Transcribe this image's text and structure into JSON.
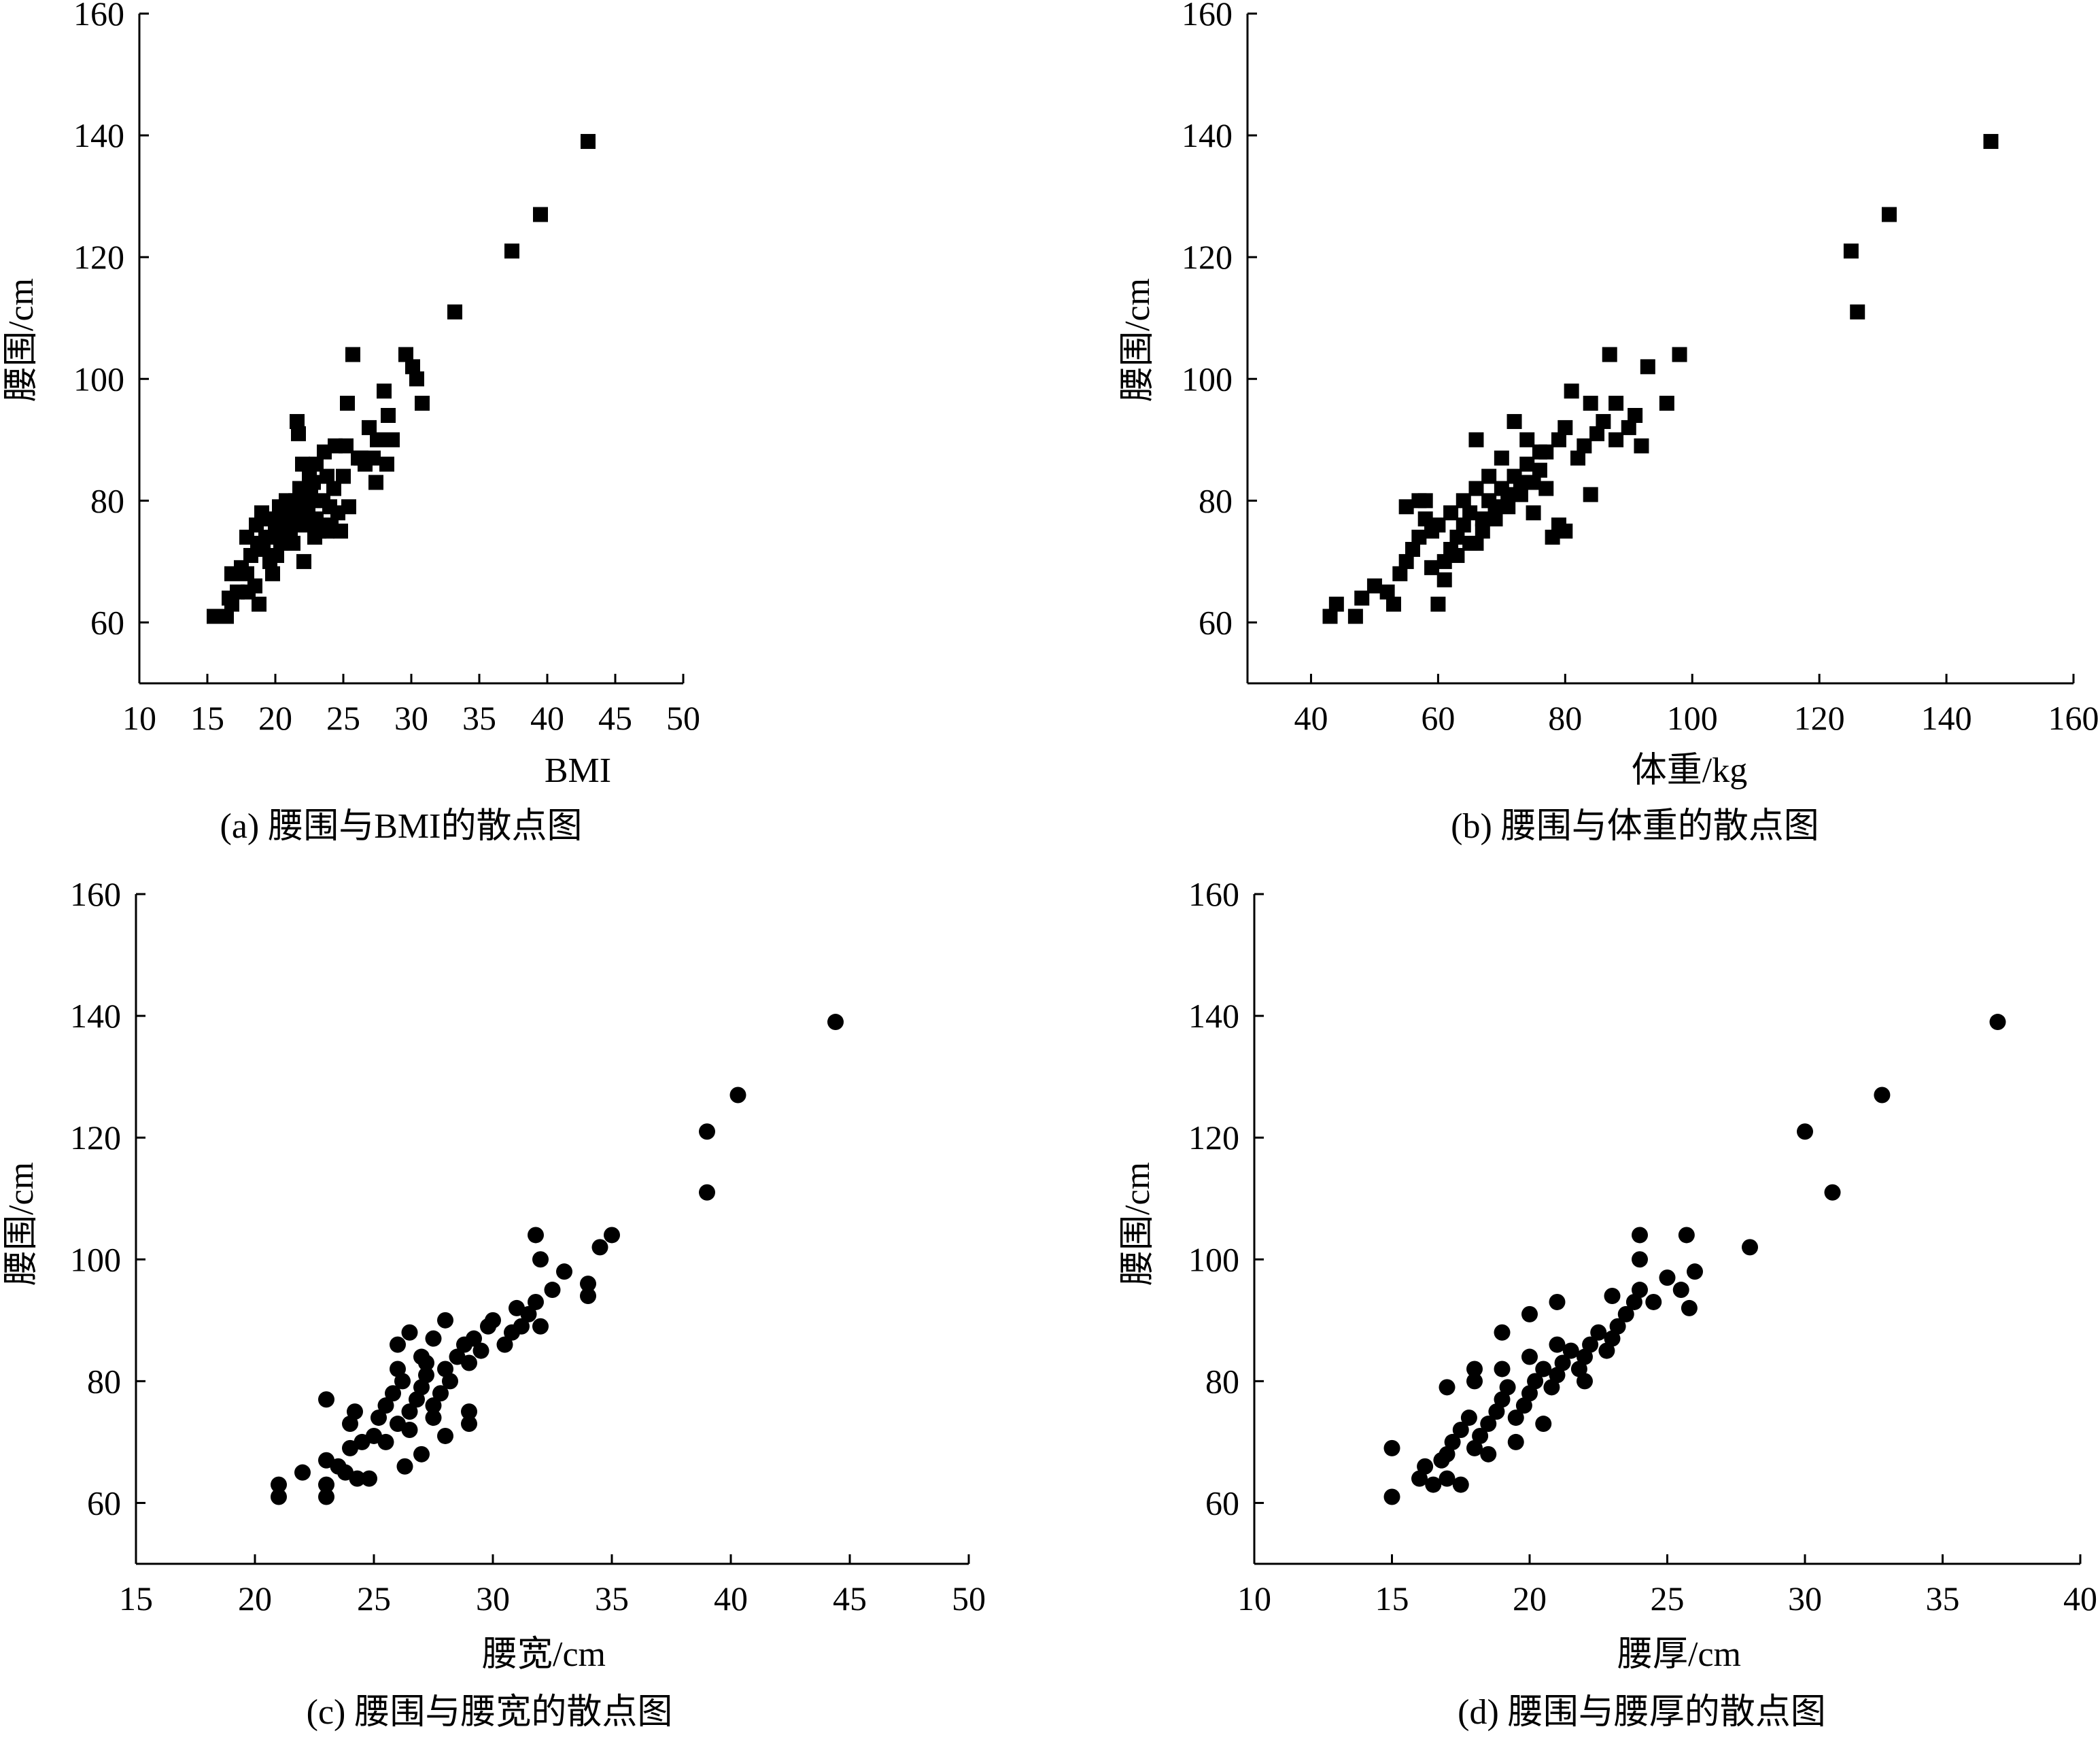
{
  "chart_data": [
    {
      "type": "scatter",
      "marker": "square",
      "caption": "(a) 腰围与BMI的散点图",
      "xlabel": "BMI",
      "ylabel": "腰围/cm",
      "xlim": [
        10,
        50
      ],
      "ylim": [
        50,
        160
      ],
      "xticks": [
        10,
        15,
        20,
        25,
        30,
        35,
        40,
        45,
        50
      ],
      "yticks": [
        60,
        80,
        100,
        120,
        140,
        160
      ],
      "points": [
        [
          15.5,
          61
        ],
        [
          16.4,
          61
        ],
        [
          16.6,
          64
        ],
        [
          16.8,
          63
        ],
        [
          17.2,
          65
        ],
        [
          16.8,
          68
        ],
        [
          17.5,
          69
        ],
        [
          17.9,
          68
        ],
        [
          18,
          65
        ],
        [
          18.5,
          66
        ],
        [
          18.8,
          63
        ],
        [
          18.2,
          71
        ],
        [
          18.7,
          73
        ],
        [
          19.1,
          72
        ],
        [
          19.3,
          74
        ],
        [
          19.6,
          70
        ],
        [
          19.8,
          68
        ],
        [
          20,
          75
        ],
        [
          20.2,
          76
        ],
        [
          20.4,
          73
        ],
        [
          20.6,
          77
        ],
        [
          20.9,
          78
        ],
        [
          21.1,
          75
        ],
        [
          21.3,
          73
        ],
        [
          21.5,
          80
        ],
        [
          21.8,
          82
        ],
        [
          22,
          78
        ],
        [
          22.2,
          76
        ],
        [
          22.4,
          79
        ],
        [
          22.6,
          81
        ],
        [
          22.8,
          83
        ],
        [
          23,
          77
        ],
        [
          23.2,
          75
        ],
        [
          23.5,
          80
        ],
        [
          23.8,
          84
        ],
        [
          24,
          79
        ],
        [
          24.3,
          82
        ],
        [
          24.6,
          78
        ],
        [
          24.8,
          75
        ],
        [
          25,
          84
        ],
        [
          21.6,
          93
        ],
        [
          21.7,
          91
        ],
        [
          22,
          86
        ],
        [
          22.5,
          84
        ],
        [
          23,
          86
        ],
        [
          23.6,
          88
        ],
        [
          24.4,
          89
        ],
        [
          25.2,
          89
        ],
        [
          25.3,
          96
        ],
        [
          25.7,
          104
        ],
        [
          26.1,
          87
        ],
        [
          26.6,
          86
        ],
        [
          26.9,
          92
        ],
        [
          27.2,
          87
        ],
        [
          27.5,
          90
        ],
        [
          28,
          98
        ],
        [
          28.3,
          94
        ],
        [
          28.6,
          90
        ],
        [
          29.6,
          104
        ],
        [
          30.1,
          102
        ],
        [
          30.4,
          100
        ],
        [
          30.8,
          96
        ],
        [
          17.9,
          74
        ],
        [
          18.6,
          76
        ],
        [
          19.5,
          77
        ],
        [
          20.3,
          79
        ],
        [
          20.8,
          80
        ],
        [
          21.2,
          79
        ],
        [
          22.9,
          74
        ],
        [
          23.8,
          75
        ],
        [
          19,
          78
        ],
        [
          20.1,
          71
        ],
        [
          21.4,
          77
        ],
        [
          22.1,
          70
        ],
        [
          24.1,
          76
        ],
        [
          25.4,
          79
        ],
        [
          26.3,
          87
        ],
        [
          27.4,
          83
        ],
        [
          28.2,
          86
        ],
        [
          33.2,
          111
        ],
        [
          37.4,
          121
        ],
        [
          39.5,
          127
        ],
        [
          43,
          139
        ]
      ]
    },
    {
      "type": "scatter",
      "marker": "square",
      "caption": "(b) 腰围与体重的散点图",
      "xlabel": "体重/kg",
      "ylabel": "腰围/cm",
      "xlim": [
        30,
        160
      ],
      "ylim": [
        50,
        160
      ],
      "xticks": [
        40,
        60,
        80,
        100,
        120,
        140,
        160
      ],
      "yticks": [
        60,
        80,
        100,
        120,
        140,
        160
      ],
      "points": [
        [
          43,
          61
        ],
        [
          44,
          63
        ],
        [
          47,
          61
        ],
        [
          48,
          64
        ],
        [
          50,
          66
        ],
        [
          52,
          65
        ],
        [
          53,
          63
        ],
        [
          54,
          68
        ],
        [
          55,
          70
        ],
        [
          56,
          72
        ],
        [
          57,
          74
        ],
        [
          58,
          80
        ],
        [
          59,
          75
        ],
        [
          60,
          63
        ],
        [
          61,
          70
        ],
        [
          62,
          72
        ],
        [
          63,
          74
        ],
        [
          64,
          76
        ],
        [
          65,
          78
        ],
        [
          66,
          73
        ],
        [
          67,
          75
        ],
        [
          68,
          80
        ],
        [
          69,
          77
        ],
        [
          70,
          82
        ],
        [
          71,
          79
        ],
        [
          72,
          84
        ],
        [
          73,
          81
        ],
        [
          74,
          86
        ],
        [
          75,
          83
        ],
        [
          76,
          85
        ],
        [
          77,
          88
        ],
        [
          78,
          74
        ],
        [
          79,
          90
        ],
        [
          80,
          92
        ],
        [
          81,
          98
        ],
        [
          82,
          87
        ],
        [
          83,
          89
        ],
        [
          84,
          96
        ],
        [
          85,
          91
        ],
        [
          86,
          93
        ],
        [
          87,
          104
        ],
        [
          88,
          90
        ],
        [
          90,
          92
        ],
        [
          91,
          94
        ],
        [
          92,
          89
        ],
        [
          93,
          102
        ],
        [
          96,
          96
        ],
        [
          98,
          104
        ],
        [
          55,
          79
        ],
        [
          57,
          80
        ],
        [
          58,
          77
        ],
        [
          60,
          76
        ],
        [
          62,
          78
        ],
        [
          64,
          80
        ],
        [
          66,
          82
        ],
        [
          68,
          84
        ],
        [
          70,
          87
        ],
        [
          72,
          93
        ],
        [
          74,
          90
        ],
        [
          76,
          88
        ],
        [
          59,
          69
        ],
        [
          61,
          67
        ],
        [
          63,
          71
        ],
        [
          65,
          73
        ],
        [
          67,
          77
        ],
        [
          69,
          79
        ],
        [
          71,
          81
        ],
        [
          73,
          83
        ],
        [
          75,
          78
        ],
        [
          77,
          82
        ],
        [
          79,
          76
        ],
        [
          66,
          90
        ],
        [
          80,
          75
        ],
        [
          84,
          81
        ],
        [
          88,
          96
        ],
        [
          125,
          121
        ],
        [
          126,
          111
        ],
        [
          131,
          127
        ],
        [
          147,
          139
        ]
      ]
    },
    {
      "type": "scatter",
      "marker": "circle",
      "caption": "(c) 腰围与腰宽的散点图",
      "xlabel": "腰宽/cm",
      "ylabel": "腰围/cm",
      "xlim": [
        15,
        50
      ],
      "ylim": [
        50,
        160
      ],
      "xticks": [
        15,
        20,
        25,
        30,
        35,
        40,
        45,
        50
      ],
      "yticks": [
        60,
        80,
        100,
        120,
        140,
        160
      ],
      "points": [
        [
          21,
          61
        ],
        [
          21,
          63
        ],
        [
          22,
          65
        ],
        [
          23,
          61
        ],
        [
          23,
          63
        ],
        [
          23,
          67
        ],
        [
          23.5,
          66
        ],
        [
          23.8,
          65
        ],
        [
          24,
          69
        ],
        [
          24.3,
          64
        ],
        [
          24.5,
          70
        ],
        [
          24.8,
          64
        ],
        [
          23,
          77
        ],
        [
          24,
          73
        ],
        [
          24.2,
          75
        ],
        [
          25,
          71
        ],
        [
          25.2,
          74
        ],
        [
          25.5,
          76
        ],
        [
          25.8,
          78
        ],
        [
          26,
          73
        ],
        [
          26.2,
          80
        ],
        [
          26.5,
          75
        ],
        [
          26.8,
          77
        ],
        [
          27,
          79
        ],
        [
          27.2,
          81
        ],
        [
          27.5,
          76
        ],
        [
          27.8,
          78
        ],
        [
          28,
          82
        ],
        [
          28.2,
          80
        ],
        [
          28.5,
          84
        ],
        [
          28.8,
          86
        ],
        [
          29,
          83
        ],
        [
          29.2,
          87
        ],
        [
          29.5,
          85
        ],
        [
          29.8,
          89
        ],
        [
          30,
          90
        ],
        [
          30.5,
          86
        ],
        [
          30.8,
          88
        ],
        [
          31,
          92
        ],
        [
          31.2,
          89
        ],
        [
          31.5,
          91
        ],
        [
          31.8,
          93
        ],
        [
          32,
          89
        ],
        [
          32.5,
          95
        ],
        [
          33,
          98
        ],
        [
          34,
          94
        ],
        [
          34,
          96
        ],
        [
          31.8,
          104
        ],
        [
          32,
          100
        ],
        [
          34.5,
          102
        ],
        [
          35,
          104
        ],
        [
          26,
          86
        ],
        [
          26.5,
          88
        ],
        [
          27,
          84
        ],
        [
          27.5,
          87
        ],
        [
          28,
          90
        ],
        [
          26.3,
          66
        ],
        [
          27,
          68
        ],
        [
          28,
          71
        ],
        [
          29,
          73
        ],
        [
          29,
          75
        ],
        [
          25.5,
          70
        ],
        [
          26.5,
          72
        ],
        [
          27.5,
          74
        ],
        [
          26,
          82
        ],
        [
          27.2,
          83
        ],
        [
          39,
          111
        ],
        [
          39,
          121
        ],
        [
          40.3,
          127
        ],
        [
          44.4,
          139
        ]
      ]
    },
    {
      "type": "scatter",
      "marker": "circle",
      "caption": "(d) 腰围与腰厚的散点图",
      "xlabel": "腰厚/cm",
      "ylabel": "腰围/cm",
      "xlim": [
        10,
        40
      ],
      "ylim": [
        50,
        160
      ],
      "xticks": [
        10,
        15,
        20,
        25,
        30,
        35,
        40
      ],
      "yticks": [
        60,
        80,
        100,
        120,
        140,
        160
      ],
      "points": [
        [
          15,
          61
        ],
        [
          15,
          69
        ],
        [
          16,
          64
        ],
        [
          16.2,
          66
        ],
        [
          16.5,
          63
        ],
        [
          16.8,
          67
        ],
        [
          17,
          68
        ],
        [
          17.2,
          70
        ],
        [
          17.5,
          72
        ],
        [
          17.8,
          74
        ],
        [
          18,
          69
        ],
        [
          18.2,
          71
        ],
        [
          18.5,
          73
        ],
        [
          18.8,
          75
        ],
        [
          19,
          77
        ],
        [
          19.2,
          79
        ],
        [
          19.5,
          74
        ],
        [
          19.8,
          76
        ],
        [
          20,
          78
        ],
        [
          20.2,
          80
        ],
        [
          20.5,
          82
        ],
        [
          20.8,
          79
        ],
        [
          21,
          81
        ],
        [
          21.2,
          83
        ],
        [
          21.5,
          85
        ],
        [
          21.8,
          82
        ],
        [
          22,
          84
        ],
        [
          22.2,
          86
        ],
        [
          22.5,
          88
        ],
        [
          22.8,
          85
        ],
        [
          23,
          87
        ],
        [
          23.2,
          89
        ],
        [
          23.5,
          91
        ],
        [
          23.8,
          93
        ],
        [
          24,
          95
        ],
        [
          24.5,
          93
        ],
        [
          25,
          97
        ],
        [
          25.5,
          95
        ],
        [
          25.8,
          92
        ],
        [
          26,
          98
        ],
        [
          24,
          104
        ],
        [
          24,
          100
        ],
        [
          25.7,
          104
        ],
        [
          17,
          79
        ],
        [
          18,
          80
        ],
        [
          19,
          82
        ],
        [
          20,
          84
        ],
        [
          21,
          86
        ],
        [
          17,
          64
        ],
        [
          17.5,
          63
        ],
        [
          18.5,
          68
        ],
        [
          19.5,
          70
        ],
        [
          20.5,
          73
        ],
        [
          18,
          82
        ],
        [
          19,
          88
        ],
        [
          20,
          91
        ],
        [
          21,
          93
        ],
        [
          22,
          80
        ],
        [
          23,
          94
        ],
        [
          28,
          102
        ],
        [
          30,
          121
        ],
        [
          31,
          111
        ],
        [
          32.8,
          127
        ],
        [
          37,
          139
        ]
      ]
    }
  ]
}
